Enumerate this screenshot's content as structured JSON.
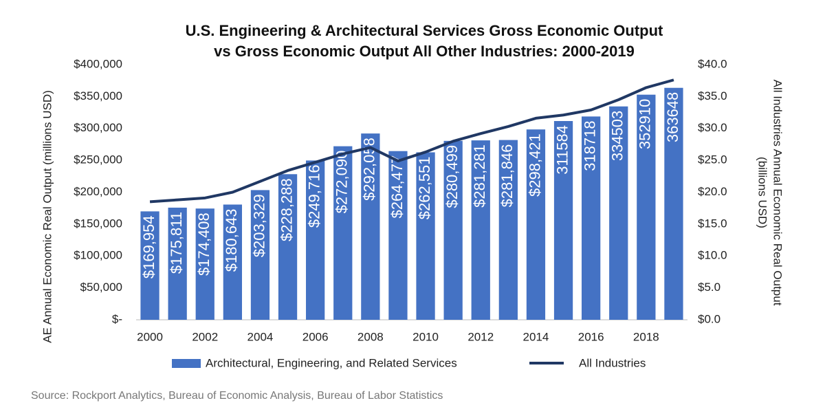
{
  "chart_data": {
    "type": "bar",
    "title": [
      "U.S. Engineering & Architectural Services Gross Economic Output",
      "vs Gross Economic Output All Other Industries: 2000-2019"
    ],
    "ylabel": "AE Annual Economic Real Output (millions USD)",
    "y2label": [
      "All Industries Annual Economic Real Output",
      "(billions USD)"
    ],
    "source": "Source: Rockport Analytics, Bureau of Economic Analysis, Bureau of Labor Statistics",
    "categories": [
      "2000",
      null,
      "2002",
      null,
      "2004",
      null,
      "2006",
      null,
      "2008",
      null,
      "2010",
      null,
      "2012",
      null,
      "2014",
      null,
      "2016",
      null,
      "2018",
      null
    ],
    "series": [
      {
        "name": "Architectural, Engineering, and Related Services",
        "type": "bar",
        "color": "#4472c4",
        "values": [
          169954,
          175811,
          174408,
          180643,
          203329,
          228288,
          249716,
          272090,
          292058,
          264477,
          262551,
          280499,
          281281,
          281846,
          298421,
          311584,
          318718,
          334503,
          352910,
          363648
        ],
        "value_labels": [
          "$169,954",
          "$175,811",
          "$174,408",
          "$180,643",
          "$203,329",
          "$228,288",
          "$249,716",
          "$272,090",
          "$292,058",
          "$264,477",
          "$262,551",
          "$280,499",
          "$281,281",
          "$281,846",
          "$298,421",
          "311584",
          "318718",
          "334503",
          "352910",
          "363648"
        ]
      },
      {
        "name": "All Industries",
        "type": "line",
        "axis": "y2",
        "color": "#203864",
        "values": [
          18.5,
          18.8,
          19.1,
          20.0,
          21.7,
          23.4,
          24.7,
          26.0,
          27.0,
          24.9,
          26.3,
          28.0,
          29.2,
          30.3,
          31.6,
          32.1,
          32.9,
          34.5,
          36.4,
          37.6
        ]
      }
    ],
    "ylim": [
      0,
      400000
    ],
    "yticks": [
      {
        "value": 0,
        "label": "$-"
      },
      {
        "value": 50000,
        "label": "$50,000"
      },
      {
        "value": 100000,
        "label": "$100,000"
      },
      {
        "value": 150000,
        "label": "$150,000"
      },
      {
        "value": 200000,
        "label": "$200,000"
      },
      {
        "value": 250000,
        "label": "$250,000"
      },
      {
        "value": 300000,
        "label": "$300,000"
      },
      {
        "value": 350000,
        "label": "$350,000"
      },
      {
        "value": 400000,
        "label": "$400,000"
      }
    ],
    "y2lim": [
      0,
      40
    ],
    "y2ticks": [
      {
        "value": 0,
        "label": "$0.0"
      },
      {
        "value": 5,
        "label": "$5.0"
      },
      {
        "value": 10,
        "label": "$10.0"
      },
      {
        "value": 15,
        "label": "$15.0"
      },
      {
        "value": 20,
        "label": "$20.0"
      },
      {
        "value": 25,
        "label": "$25.0"
      },
      {
        "value": 30,
        "label": "$30.0"
      },
      {
        "value": 35,
        "label": "$35.0"
      },
      {
        "value": 40,
        "label": "$40.0"
      }
    ],
    "grid": false
  }
}
